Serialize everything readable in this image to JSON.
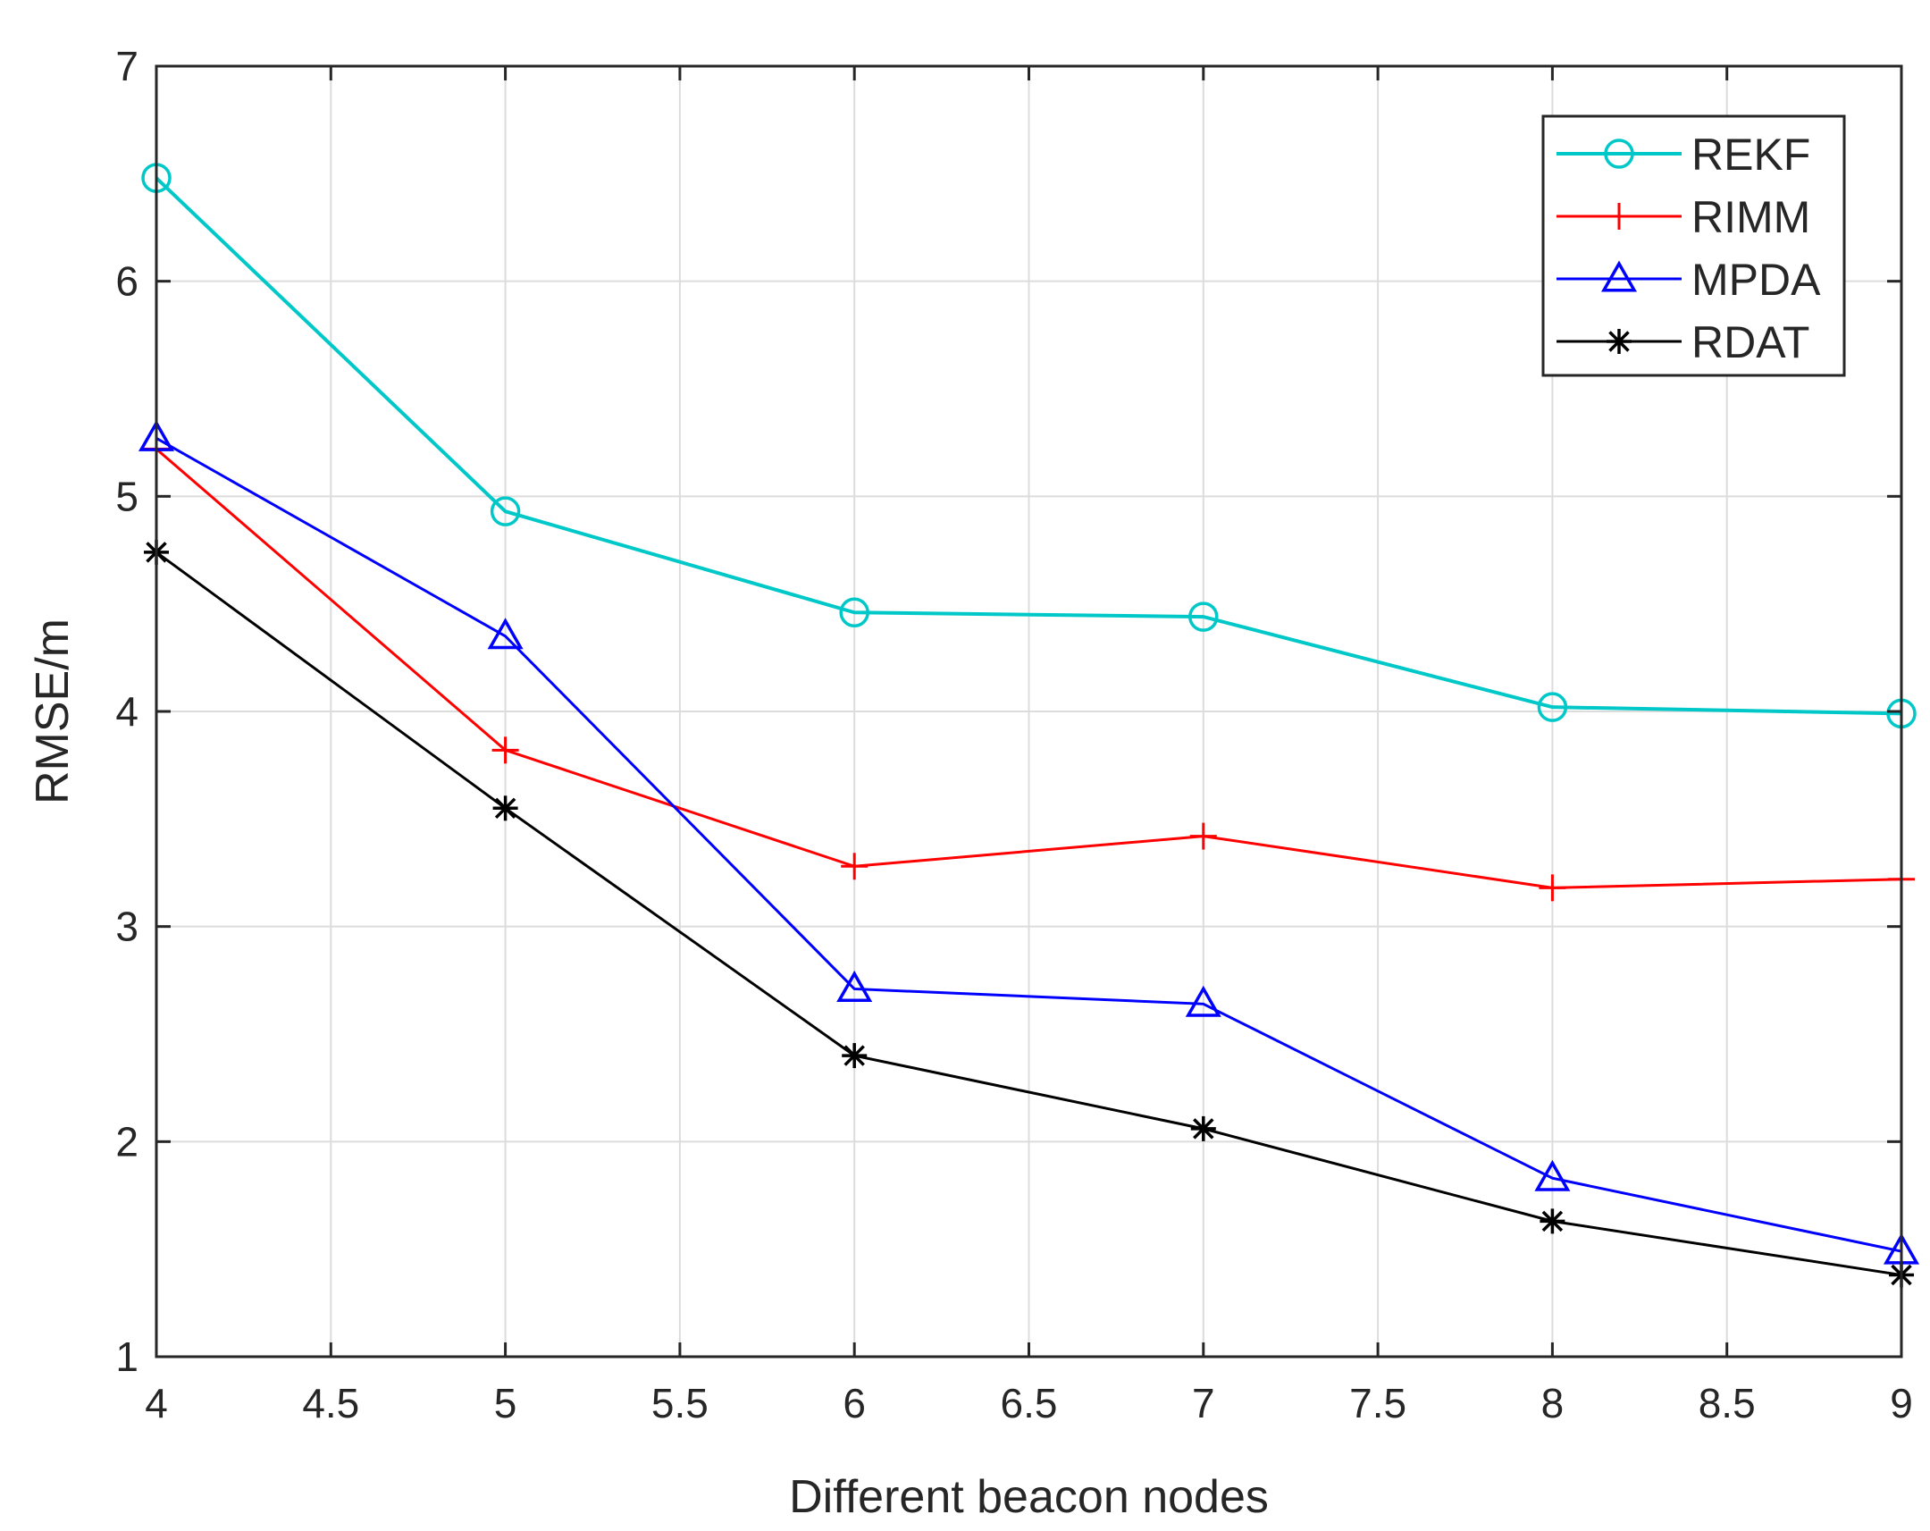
{
  "chart_data": {
    "type": "line",
    "title": "",
    "xlabel": "Different beacon nodes",
    "ylabel": "RMSE/m",
    "x": [
      4,
      5,
      6,
      7,
      8,
      9
    ],
    "xlim": [
      4,
      9
    ],
    "ylim": [
      1,
      7
    ],
    "xticks": [
      "4",
      "4.5",
      "5",
      "5.5",
      "6",
      "6.5",
      "7",
      "7.5",
      "8",
      "8.5",
      "9"
    ],
    "yticks": [
      "1",
      "2",
      "3",
      "4",
      "5",
      "6",
      "7"
    ],
    "grid": true,
    "legend_position": "top-right",
    "series": [
      {
        "name": "REKF",
        "color": "#00c8c8",
        "marker": "circle",
        "values": [
          6.48,
          4.93,
          4.46,
          4.44,
          4.02,
          3.99
        ]
      },
      {
        "name": "RIMM",
        "color": "#ff0000",
        "marker": "plus",
        "values": [
          5.22,
          3.82,
          3.28,
          3.42,
          3.18,
          3.22
        ]
      },
      {
        "name": "MPDA",
        "color": "#0000ff",
        "marker": "triangle",
        "values": [
          5.27,
          4.35,
          2.71,
          2.64,
          1.83,
          1.49
        ]
      },
      {
        "name": "RDAT",
        "color": "#000000",
        "marker": "asterisk",
        "values": [
          4.74,
          3.55,
          2.4,
          2.06,
          1.63,
          1.38
        ]
      }
    ]
  }
}
